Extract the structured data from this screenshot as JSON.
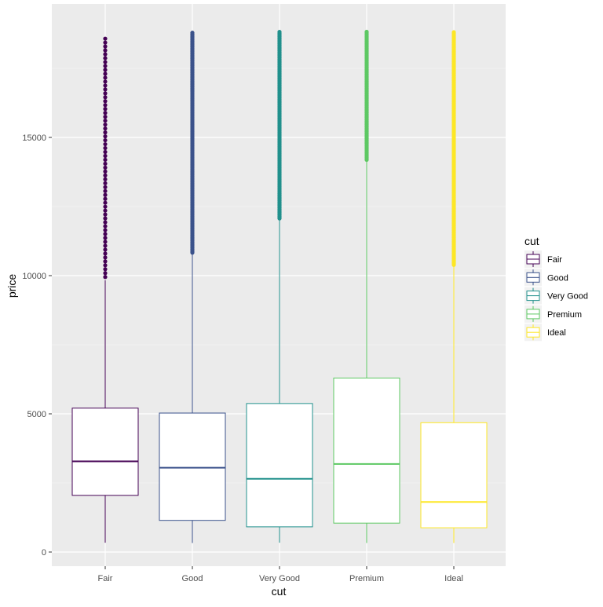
{
  "chart_data": {
    "type": "boxplot",
    "xlabel": "cut",
    "ylabel": "price",
    "ylim": [
      -950,
      19800
    ],
    "yticks": [
      0,
      5000,
      10000,
      15000
    ],
    "ytick_labels": [
      "0",
      "5000",
      "10000",
      "15000"
    ],
    "categories": [
      "Fair",
      "Good",
      "Very Good",
      "Premium",
      "Ideal"
    ],
    "colors": [
      "#440154",
      "#3B528B",
      "#21908C",
      "#5DC863",
      "#FDE725"
    ],
    "boxes": [
      {
        "min": 337,
        "q1": 2050,
        "median": 3282,
        "q3": 5206,
        "whisker_high": 9836,
        "outliers_from": 9950,
        "outliers_to": 18574
      },
      {
        "min": 327,
        "q1": 1145,
        "median": 3050,
        "q3": 5028,
        "whisker_high": 10800,
        "outliers_from": 10830,
        "outliers_to": 18788
      },
      {
        "min": 336,
        "q1": 912,
        "median": 2648,
        "q3": 5373,
        "whisker_high": 12050,
        "outliers_from": 12070,
        "outliers_to": 18818
      },
      {
        "min": 326,
        "q1": 1046,
        "median": 3185,
        "q3": 6296,
        "whisker_high": 14170,
        "outliers_from": 14190,
        "outliers_to": 18823
      },
      {
        "min": 326,
        "q1": 878,
        "median": 1810,
        "q3": 4679,
        "whisker_high": 10380,
        "outliers_from": 10390,
        "outliers_to": 18806
      }
    ],
    "legend": {
      "title": "cut",
      "entries": [
        "Fair",
        "Good",
        "Very Good",
        "Premium",
        "Ideal"
      ],
      "placement": "right"
    },
    "grid": true
  }
}
